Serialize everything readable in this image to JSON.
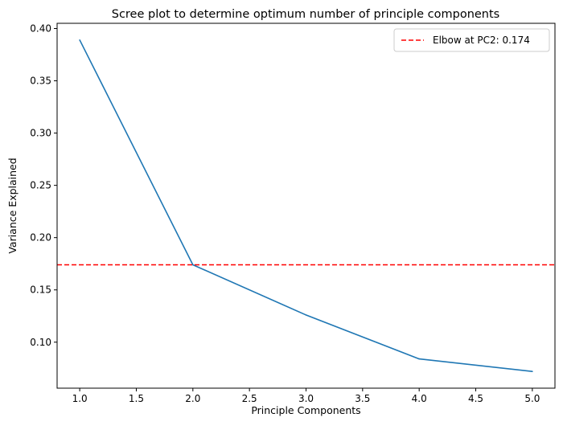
{
  "chart_data": {
    "type": "line",
    "title": "Scree plot to determine optimum number of principle components",
    "xlabel": "Principle Components",
    "ylabel": "Variance Explained",
    "x": [
      1,
      2,
      3,
      4,
      5
    ],
    "series": [
      {
        "values": [
          0.389,
          0.174,
          0.126,
          0.084,
          0.072
        ],
        "color": "#1f77b4"
      }
    ],
    "xlim": [
      0.8,
      5.2
    ],
    "ylim": [
      0.056,
      0.405
    ],
    "xticks": [
      1.0,
      1.5,
      2.0,
      2.5,
      3.0,
      3.5,
      4.0,
      4.5,
      5.0
    ],
    "xtick_labels": [
      "1.0",
      "1.5",
      "2.0",
      "2.5",
      "3.0",
      "3.5",
      "4.0",
      "4.5",
      "5.0"
    ],
    "yticks": [
      0.1,
      0.15,
      0.2,
      0.25,
      0.3,
      0.35,
      0.4
    ],
    "ytick_labels": [
      "0.10",
      "0.15",
      "0.20",
      "0.25",
      "0.30",
      "0.35",
      "0.40"
    ],
    "hline": {
      "y": 0.174,
      "color": "#ff0000",
      "style": "dashed",
      "label": "Elbow at PC2: 0.174"
    },
    "legend": {
      "position": "top-right"
    },
    "grid": false
  }
}
